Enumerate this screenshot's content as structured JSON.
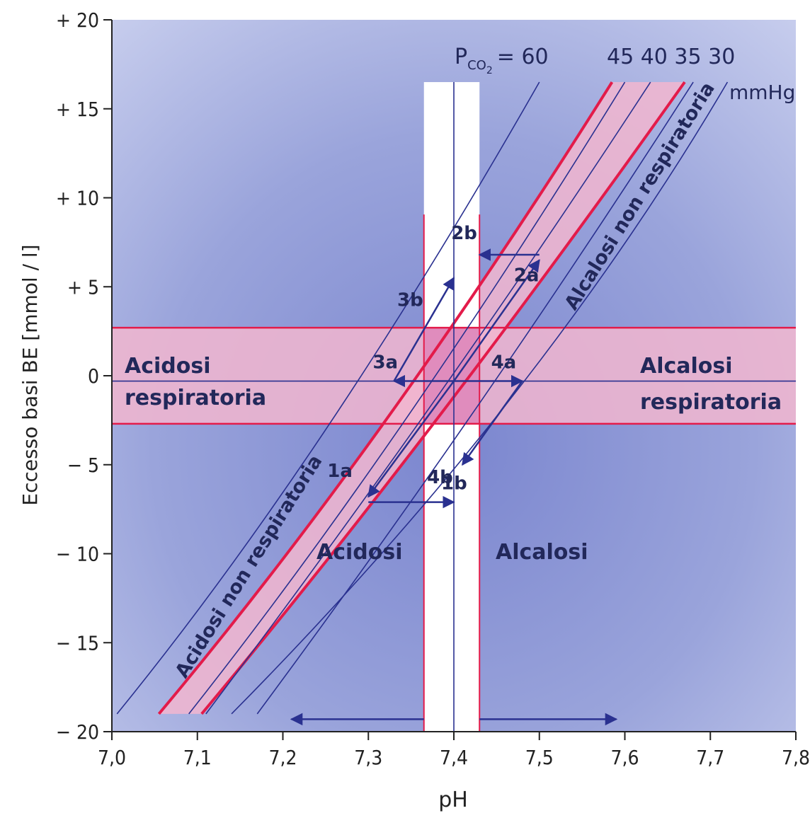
{
  "chart_data": {
    "type": "line",
    "title": "",
    "xlabel": "pH",
    "ylabel": "Eccesso basi BE [mmol / l]",
    "xlim": [
      7.0,
      7.8
    ],
    "ylim": [
      -20,
      20
    ],
    "x_ticks": [
      7.0,
      7.1,
      7.2,
      7.3,
      7.4,
      7.5,
      7.6,
      7.7,
      7.8
    ],
    "x_tick_labels": [
      "7,0",
      "7,1",
      "7,2",
      "7,3",
      "7,4",
      "7,5",
      "7,6",
      "7,7",
      "7,8"
    ],
    "y_ticks": [
      20,
      15,
      10,
      5,
      0,
      -5,
      -10,
      -15,
      -20
    ],
    "y_tick_labels": [
      "+ 20",
      "+ 15",
      "+ 10",
      "+ 5",
      "0",
      "− 5",
      "− 10",
      "− 15",
      "− 20"
    ],
    "pco2_label": {
      "main": "P",
      "sub": "CO",
      "sub2": "2",
      "eq": "= 60"
    },
    "pco2_values_label": "45 40 35 30",
    "pco2_unit": "mmHg",
    "series": [
      {
        "name": "60",
        "points": [
          [
            7.006,
            -19
          ],
          [
            7.25,
            -4.6
          ],
          [
            7.5,
            16.5
          ]
        ]
      },
      {
        "name": "45",
        "points": [
          [
            7.09,
            -19
          ],
          [
            7.34,
            -3.8
          ],
          [
            7.6,
            16.5
          ]
        ]
      },
      {
        "name": "40",
        "points": [
          [
            7.11,
            -19
          ],
          [
            7.4,
            -0.5
          ],
          [
            7.63,
            16.5
          ]
        ]
      },
      {
        "name": "35",
        "points": [
          [
            7.17,
            -19
          ],
          [
            7.44,
            -1.5
          ],
          [
            7.68,
            16.5
          ]
        ]
      },
      {
        "name": "30",
        "points": [
          [
            7.14,
            -19
          ],
          [
            7.5,
            -1.5
          ],
          [
            7.72,
            16.5
          ]
        ]
      }
    ],
    "bands": {
      "normal_pco2_band": {
        "inner_from": [
          [
            7.055,
            -19
          ],
          [
            7.32,
            -3.8
          ],
          [
            7.585,
            16.5
          ]
        ],
        "inner_to": [
          [
            7.105,
            -19
          ],
          [
            7.37,
            -3.8
          ],
          [
            7.67,
            16.5
          ]
        ]
      },
      "normal_be": [
        -2.7,
        2.7
      ],
      "normal_ph": [
        7.365,
        7.43
      ],
      "normal_ph_bar_top": 16.5
    },
    "reference_lines": {
      "ph": 7.4,
      "be": -0.3
    },
    "region_labels": {
      "acidosi_respiratoria": [
        "Acidosi",
        "respiratoria"
      ],
      "alcalosi_respiratoria": [
        "Alcalosi",
        "respiratoria"
      ],
      "acidosi_non_respiratoria": "Acidosi non respiratoria",
      "alcalosi_non_respiratoria": "Alcalosi non respiratoria",
      "acidosi": "Acidosi",
      "alcalosi": "Alcalosi"
    },
    "arrows": [
      {
        "label": "1a",
        "from": [
          7.4,
          -0.3
        ],
        "to": [
          7.3,
          -6.8
        ]
      },
      {
        "label": "1b",
        "from": [
          7.3,
          -7.1
        ],
        "to": [
          7.4,
          -7.1
        ]
      },
      {
        "label": "2a",
        "from": [
          7.4,
          -0.3
        ],
        "to": [
          7.5,
          6.5
        ]
      },
      {
        "label": "2b",
        "from": [
          7.5,
          6.8
        ],
        "to": [
          7.43,
          6.8
        ]
      },
      {
        "label": "3a",
        "from": [
          7.4,
          -0.3
        ],
        "to": [
          7.33,
          -0.3
        ]
      },
      {
        "label": "3b",
        "from": [
          7.33,
          -0.3
        ],
        "to": [
          7.4,
          5.5
        ]
      },
      {
        "label": "4a",
        "from": [
          7.4,
          -0.3
        ],
        "to": [
          7.48,
          -0.3
        ]
      },
      {
        "label": "4b",
        "from": [
          7.48,
          -0.3
        ],
        "to": [
          7.41,
          -5.0
        ]
      },
      {
        "label": "",
        "from": [
          7.365,
          -19.3
        ],
        "to": [
          7.21,
          -19.3
        ]
      },
      {
        "label": "",
        "from": [
          7.43,
          -19.3
        ],
        "to": [
          7.59,
          -19.3
        ]
      }
    ],
    "colors": {
      "background": "#a9b2de",
      "plot_gradient_center": "#7f8ad2",
      "blue_line": "#2a3190",
      "red_line": "#e31b4a",
      "band_fill": "#f2b6cf",
      "intersection_fill": "#dd7fb6",
      "text": "#22285a"
    }
  }
}
